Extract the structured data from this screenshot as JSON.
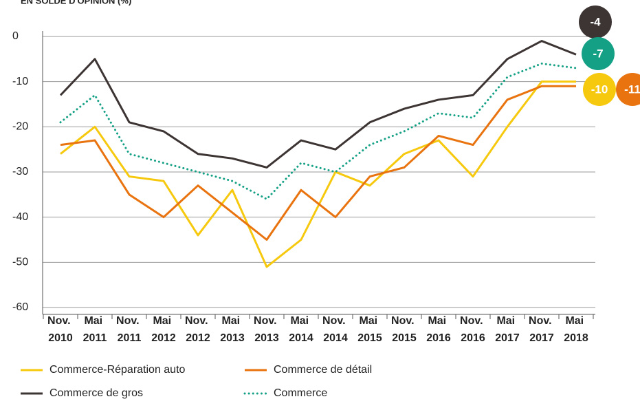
{
  "chart_data": {
    "type": "line",
    "title": "EN SOLDE D'OPINION (%)",
    "categories": [
      "Nov. 2010",
      "Mai 2011",
      "Nov. 2011",
      "Mai 2012",
      "Nov. 2012",
      "Mai 2013",
      "Nov. 2013",
      "Mai 2014",
      "Nov. 2014",
      "Mai 2015",
      "Nov. 2015",
      "Mai 2016",
      "Nov. 2016",
      "Mai 2017",
      "Nov. 2017",
      "Mai 2018"
    ],
    "series": [
      {
        "name": "Commerce-Réparation auto",
        "color": "#f6c90e",
        "dash": false,
        "values": [
          -26,
          -20,
          -31,
          -32,
          -44,
          -34,
          -51,
          -45,
          -30,
          -33,
          -26,
          -23,
          -31,
          -20,
          -10,
          -10
        ]
      },
      {
        "name": "Commerce de détail",
        "color": "#e8730f",
        "dash": false,
        "values": [
          -24,
          -23,
          -35,
          -40,
          -33,
          -39,
          -45,
          -34,
          -40,
          -31,
          -29,
          -22,
          -24,
          -14,
          -11,
          -11
        ]
      },
      {
        "name": "Commerce de gros",
        "color": "#3d3434",
        "dash": false,
        "values": [
          -13,
          -5,
          -19,
          -21,
          -26,
          -27,
          -29,
          -23,
          -25,
          -19,
          -16,
          -14,
          -13,
          -5,
          -1,
          -4
        ]
      },
      {
        "name": "Commerce",
        "color": "#14a085",
        "dash": true,
        "values": [
          -19,
          -13,
          -26,
          -28,
          -30,
          -32,
          -36,
          -28,
          -30,
          -24,
          -21,
          -17,
          -18,
          -9,
          -6,
          -7
        ]
      }
    ],
    "ylim": [
      -60,
      0
    ],
    "yticks": [
      -60,
      -50,
      -40,
      -30,
      -20,
      -10,
      0
    ],
    "grid": true
  }
}
